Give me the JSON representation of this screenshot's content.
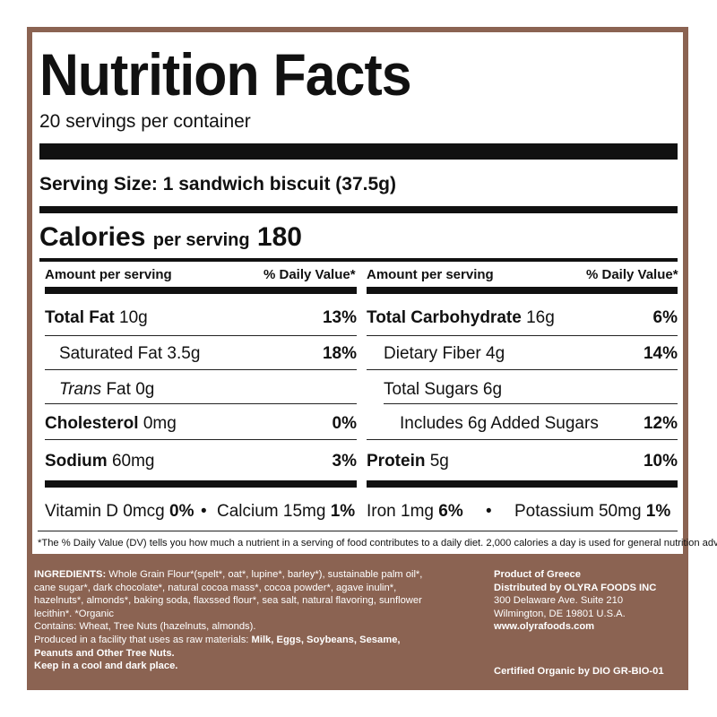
{
  "label": {
    "title": "Nutrition Facts",
    "servings": "20 servings per container",
    "serving_size_label": "Serving Size:",
    "serving_size_value": "1 sandwich biscuit (37.5g)",
    "calories_label": "Calories",
    "calories_per": "per serving",
    "calories_value": "180",
    "left_header": {
      "amount": "Amount per serving",
      "dv": "% Daily Value*"
    },
    "right_header": {
      "amount": "Amount per serving",
      "dv": "% Daily Value*"
    },
    "left_rows": [
      {
        "name": "Total Fat",
        "amount": "10g",
        "dv": "13%"
      },
      {
        "name": "Saturated Fat",
        "amount": "3.5g",
        "dv": "18%"
      },
      {
        "name_italic": "Trans",
        "name": "Fat",
        "amount": "0g",
        "dv": ""
      },
      {
        "name": "Cholesterol",
        "amount": "0mg",
        "dv": "0%"
      },
      {
        "name": "Sodium",
        "amount": "60mg",
        "dv": "3%"
      }
    ],
    "right_rows": [
      {
        "name": "Total Carbohydrate",
        "amount": "16g",
        "dv": "6%"
      },
      {
        "name": "Dietary Fiber",
        "amount": "4g",
        "dv": "14%"
      },
      {
        "name": "Total Sugars",
        "amount": "6g",
        "dv": ""
      },
      {
        "name": "Includes 6g Added Sugars",
        "amount": "",
        "dv": "12%"
      },
      {
        "name": "Protein",
        "amount": "5g",
        "dv": "10%"
      }
    ],
    "vitamins": {
      "vit_d": "Vitamin D 0mcg",
      "vit_d_pct": "0%",
      "bullet": "•",
      "calcium": "Calcium 15mg",
      "calcium_pct": "1%",
      "iron": "Iron 1mg",
      "iron_pct": "6%",
      "potassium": "Potassium 50mg",
      "potassium_pct": "1%"
    },
    "footnote": "*The % Daily Value (DV) tells you how much a nutrient in a serving of food contributes to a daily diet. 2,000 calories a day is used for general nutrition advice."
  },
  "ingredients": {
    "label": "INGREDIENTS:",
    "lines": [
      "Whole Grain Flour*(spelt*, oat*, lupine*, barley*), sustainable palm oil*,",
      "cane sugar*, dark chocolate*, natural cocoa mass*, cocoa powder*, agave inulin*,",
      "hazelnuts*, almonds*, baking soda, flaxssed flour*, sea salt, natural flavoring, sunflower",
      "lecithin*. *Organic"
    ],
    "contains": "Contains: Wheat, Tree Nuts (hazelnuts, almonds).",
    "facility_prefix": "Produced in a facility that uses as raw materials:",
    "facility_bold_1": "Milk, Eggs, Soybeans, Sesame,",
    "facility_bold_2": "Peanuts and Other Tree Nuts.",
    "storage": "Keep in a cool and dark place."
  },
  "distributor": {
    "origin": "Product of Greece",
    "distributed_by": "Distributed by OLYRA FOODS INC",
    "address_1": "300 Delaware Ave. Suite 210",
    "address_2": "Wilmington, DE 19801 U.S.A.",
    "website": "www.olyrafoods.com",
    "certification": "Certified Organic by DIO GR-BIO-01"
  },
  "colors": {
    "panel": "#8b6352",
    "ink": "#111111",
    "card": "#ffffff"
  }
}
